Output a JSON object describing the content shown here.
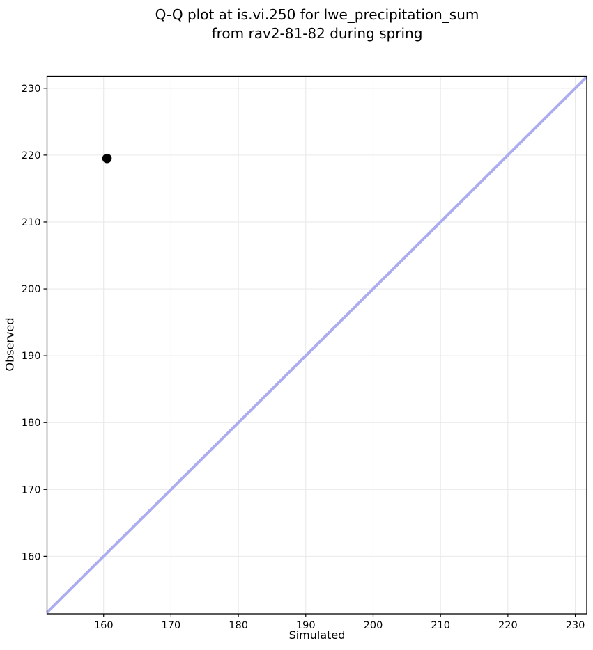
{
  "chart_data": {
    "type": "scatter",
    "title": "Q-Q plot at is.vi.250 for lwe_precipitation_sum\nfrom rav2-81-82 during spring",
    "title_line1": "Q-Q plot at is.vi.250 for lwe_precipitation_sum",
    "title_line2": "from rav2-81-82 during spring",
    "xlabel": "Simulated",
    "ylabel": "Observed",
    "xlim": [
      151.6,
      231.7
    ],
    "ylim": [
      151.4,
      231.8
    ],
    "xticks": [
      160,
      170,
      180,
      190,
      200,
      210,
      220,
      230
    ],
    "yticks": [
      160,
      170,
      180,
      190,
      200,
      210,
      220,
      230
    ],
    "grid": true,
    "legend": false,
    "series": [
      {
        "name": "identity-line",
        "type": "line",
        "color": "#acacf0",
        "width": 4,
        "points": [
          {
            "x": 151.6,
            "y": 151.6
          },
          {
            "x": 231.7,
            "y": 231.7
          }
        ]
      },
      {
        "name": "quantile-points",
        "type": "scatter",
        "color": "#000000",
        "marker_radius": 6.8,
        "points": [
          {
            "x": 160.5,
            "y": 219.5
          }
        ]
      }
    ],
    "colors": {
      "background": "#ffffff",
      "grid": "#e9e9e9",
      "spine": "#000000",
      "text": "#000000"
    }
  }
}
